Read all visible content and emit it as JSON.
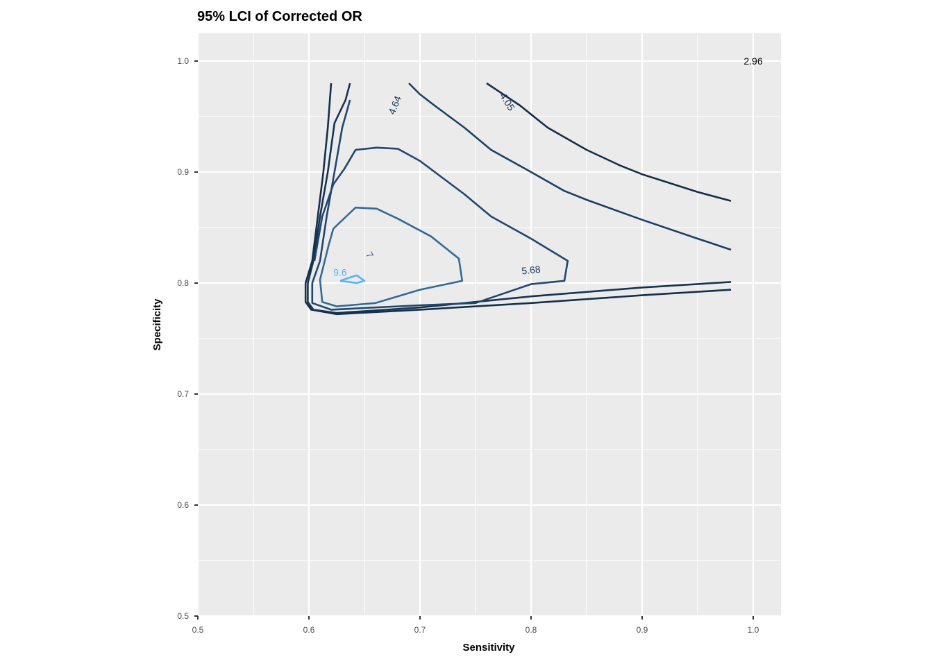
{
  "chart_data": {
    "type": "contour",
    "title": "95% LCI of Corrected OR",
    "xlabel": "Sensitivity",
    "ylabel": "Specificity",
    "xlim": [
      0.5,
      1.025
    ],
    "ylim": [
      0.5,
      1.025
    ],
    "x_ticks": [
      "0.5",
      "0.6",
      "0.7",
      "0.8",
      "0.9",
      "1.0"
    ],
    "y_ticks": [
      "0.5",
      "0.6",
      "0.7",
      "0.8",
      "0.9",
      "1.0"
    ],
    "grid": true,
    "panel_background": "#ebebeb",
    "contours": [
      {
        "level": "2.96",
        "color": "#132b43",
        "points": []
      },
      {
        "level": "4.05",
        "color": "#152f4a",
        "points": [
          [
            0.62,
            0.98
          ],
          [
            0.617,
            0.94
          ],
          [
            0.613,
            0.9
          ],
          [
            0.608,
            0.86
          ],
          [
            0.603,
            0.82
          ],
          [
            0.597,
            0.8
          ],
          [
            0.597,
            0.783
          ],
          [
            0.602,
            0.776
          ],
          [
            0.625,
            0.772
          ],
          [
            0.7,
            0.776
          ],
          [
            0.8,
            0.782
          ],
          [
            0.9,
            0.789
          ],
          [
            0.98,
            0.794
          ]
        ],
        "label_at": [
          0.778,
          0.963
        ],
        "label_angle": 58
      },
      {
        "level": "4.64",
        "color": "#173351",
        "points": [
          [
            0.637,
            0.98
          ],
          [
            0.633,
            0.965
          ],
          [
            0.623,
            0.944
          ],
          [
            0.617,
            0.9
          ],
          [
            0.61,
            0.86
          ],
          [
            0.604,
            0.82
          ],
          [
            0.599,
            0.8
          ],
          [
            0.599,
            0.783
          ],
          [
            0.604,
            0.776
          ],
          [
            0.625,
            0.773
          ],
          [
            0.7,
            0.778
          ],
          [
            0.8,
            0.788
          ],
          [
            0.9,
            0.796
          ],
          [
            0.98,
            0.801
          ]
        ],
        "label_at": [
          0.678,
          0.96
        ],
        "label_angle": -68
      },
      {
        "level": "5.68",
        "color": "#1e3f63",
        "points": [
          [
            0.69,
            0.98
          ],
          [
            0.7,
            0.97
          ],
          [
            0.713,
            0.96
          ],
          [
            0.74,
            0.94
          ],
          [
            0.764,
            0.92
          ],
          [
            0.8,
            0.9
          ],
          [
            0.83,
            0.883
          ],
          [
            0.85,
            0.875
          ],
          [
            0.9,
            0.857
          ],
          [
            0.95,
            0.84
          ],
          [
            0.98,
            0.83
          ]
        ],
        "label_at": [
          0.8,
          0.811
        ],
        "label_angle": -6
      },
      {
        "level": "",
        "color": "#172e48",
        "points": [
          [
            0.76,
            0.98
          ],
          [
            0.79,
            0.96
          ],
          [
            0.815,
            0.94
          ],
          [
            0.85,
            0.92
          ],
          [
            0.88,
            0.906
          ],
          [
            0.9,
            0.898
          ],
          [
            0.95,
            0.882
          ],
          [
            0.98,
            0.874
          ]
        ]
      },
      {
        "level": "",
        "color": "#224670",
        "points": [
          [
            0.637,
            0.965
          ],
          [
            0.63,
            0.94
          ],
          [
            0.623,
            0.9
          ],
          [
            0.616,
            0.86
          ],
          [
            0.61,
            0.82
          ],
          [
            0.603,
            0.8
          ],
          [
            0.603,
            0.782
          ],
          [
            0.62,
            0.776
          ],
          [
            0.7,
            0.78
          ],
          [
            0.75,
            0.782
          ],
          [
            0.8,
            0.799
          ],
          [
            0.83,
            0.802
          ],
          [
            0.833,
            0.82
          ],
          [
            0.8,
            0.84
          ],
          [
            0.764,
            0.86
          ],
          [
            0.74,
            0.88
          ],
          [
            0.72,
            0.895
          ],
          [
            0.7,
            0.91
          ],
          [
            0.68,
            0.921
          ],
          [
            0.661,
            0.922
          ],
          [
            0.642,
            0.92
          ],
          [
            0.632,
            0.903
          ],
          [
            0.622,
            0.889
          ],
          [
            0.612,
            0.86
          ],
          [
            0.605,
            0.82
          ]
        ]
      },
      {
        "level": "7",
        "color": "#336a98",
        "points": [
          [
            0.622,
            0.849
          ],
          [
            0.642,
            0.868
          ],
          [
            0.661,
            0.867
          ],
          [
            0.68,
            0.858
          ],
          [
            0.71,
            0.842
          ],
          [
            0.735,
            0.822
          ],
          [
            0.738,
            0.802
          ],
          [
            0.7,
            0.794
          ],
          [
            0.66,
            0.782
          ],
          [
            0.625,
            0.779
          ],
          [
            0.612,
            0.783
          ],
          [
            0.61,
            0.803
          ],
          [
            0.618,
            0.835
          ],
          [
            0.622,
            0.849
          ]
        ],
        "label_at": [
          0.654,
          0.825
        ],
        "label_angle": 60
      },
      {
        "level": "9.6",
        "color": "#56b1f7",
        "points": [
          [
            0.628,
            0.802
          ],
          [
            0.643,
            0.807
          ],
          [
            0.65,
            0.802
          ],
          [
            0.643,
            0.8
          ],
          [
            0.628,
            0.802
          ]
        ],
        "label_at": [
          0.628,
          0.809
        ],
        "label_angle": 0
      }
    ],
    "corner_label": {
      "text": "2.96",
      "at": [
        1.0,
        1.0
      ]
    }
  }
}
